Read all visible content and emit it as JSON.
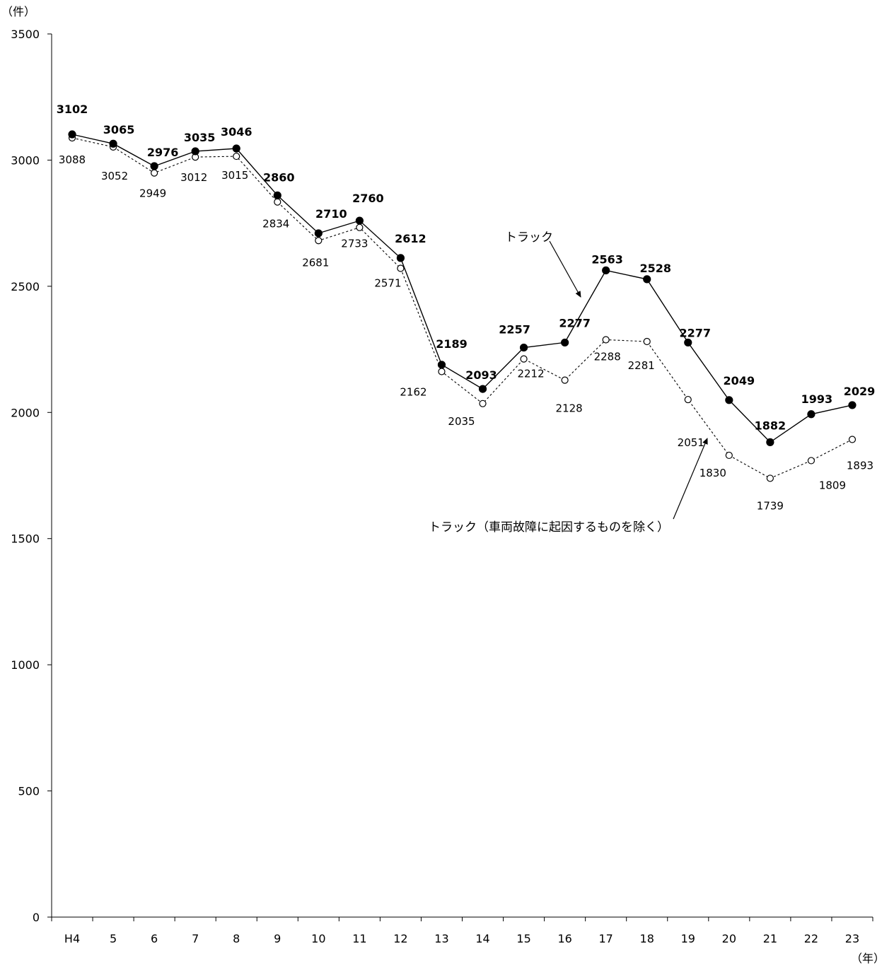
{
  "chart_data": {
    "type": "line",
    "ylabel": "（件）",
    "xlabel": "（年）",
    "ylim": [
      0,
      3500
    ],
    "yticks": [
      0,
      500,
      1000,
      1500,
      2000,
      2500,
      3000,
      3500
    ],
    "categories": [
      "H4",
      "5",
      "6",
      "7",
      "8",
      "9",
      "10",
      "11",
      "12",
      "13",
      "14",
      "15",
      "16",
      "17",
      "18",
      "19",
      "20",
      "21",
      "22",
      "23"
    ],
    "series": [
      {
        "name": "トラック",
        "marker": "filled-circle",
        "line": "solid",
        "values": [
          3102,
          3065,
          2976,
          3035,
          3046,
          2860,
          2710,
          2760,
          2612,
          2189,
          2093,
          2257,
          2277,
          2563,
          2528,
          2277,
          2049,
          1882,
          1993,
          2029
        ]
      },
      {
        "name": "トラック（車両故障に起因するものを除く）",
        "marker": "open-circle",
        "line": "dashed",
        "values": [
          3088,
          3052,
          2949,
          3012,
          3015,
          2834,
          2681,
          2733,
          2571,
          2162,
          2035,
          2212,
          2128,
          2288,
          2281,
          2051,
          1830,
          1739,
          1809,
          1893
        ]
      }
    ],
    "grid": false,
    "legend": "annotations"
  }
}
